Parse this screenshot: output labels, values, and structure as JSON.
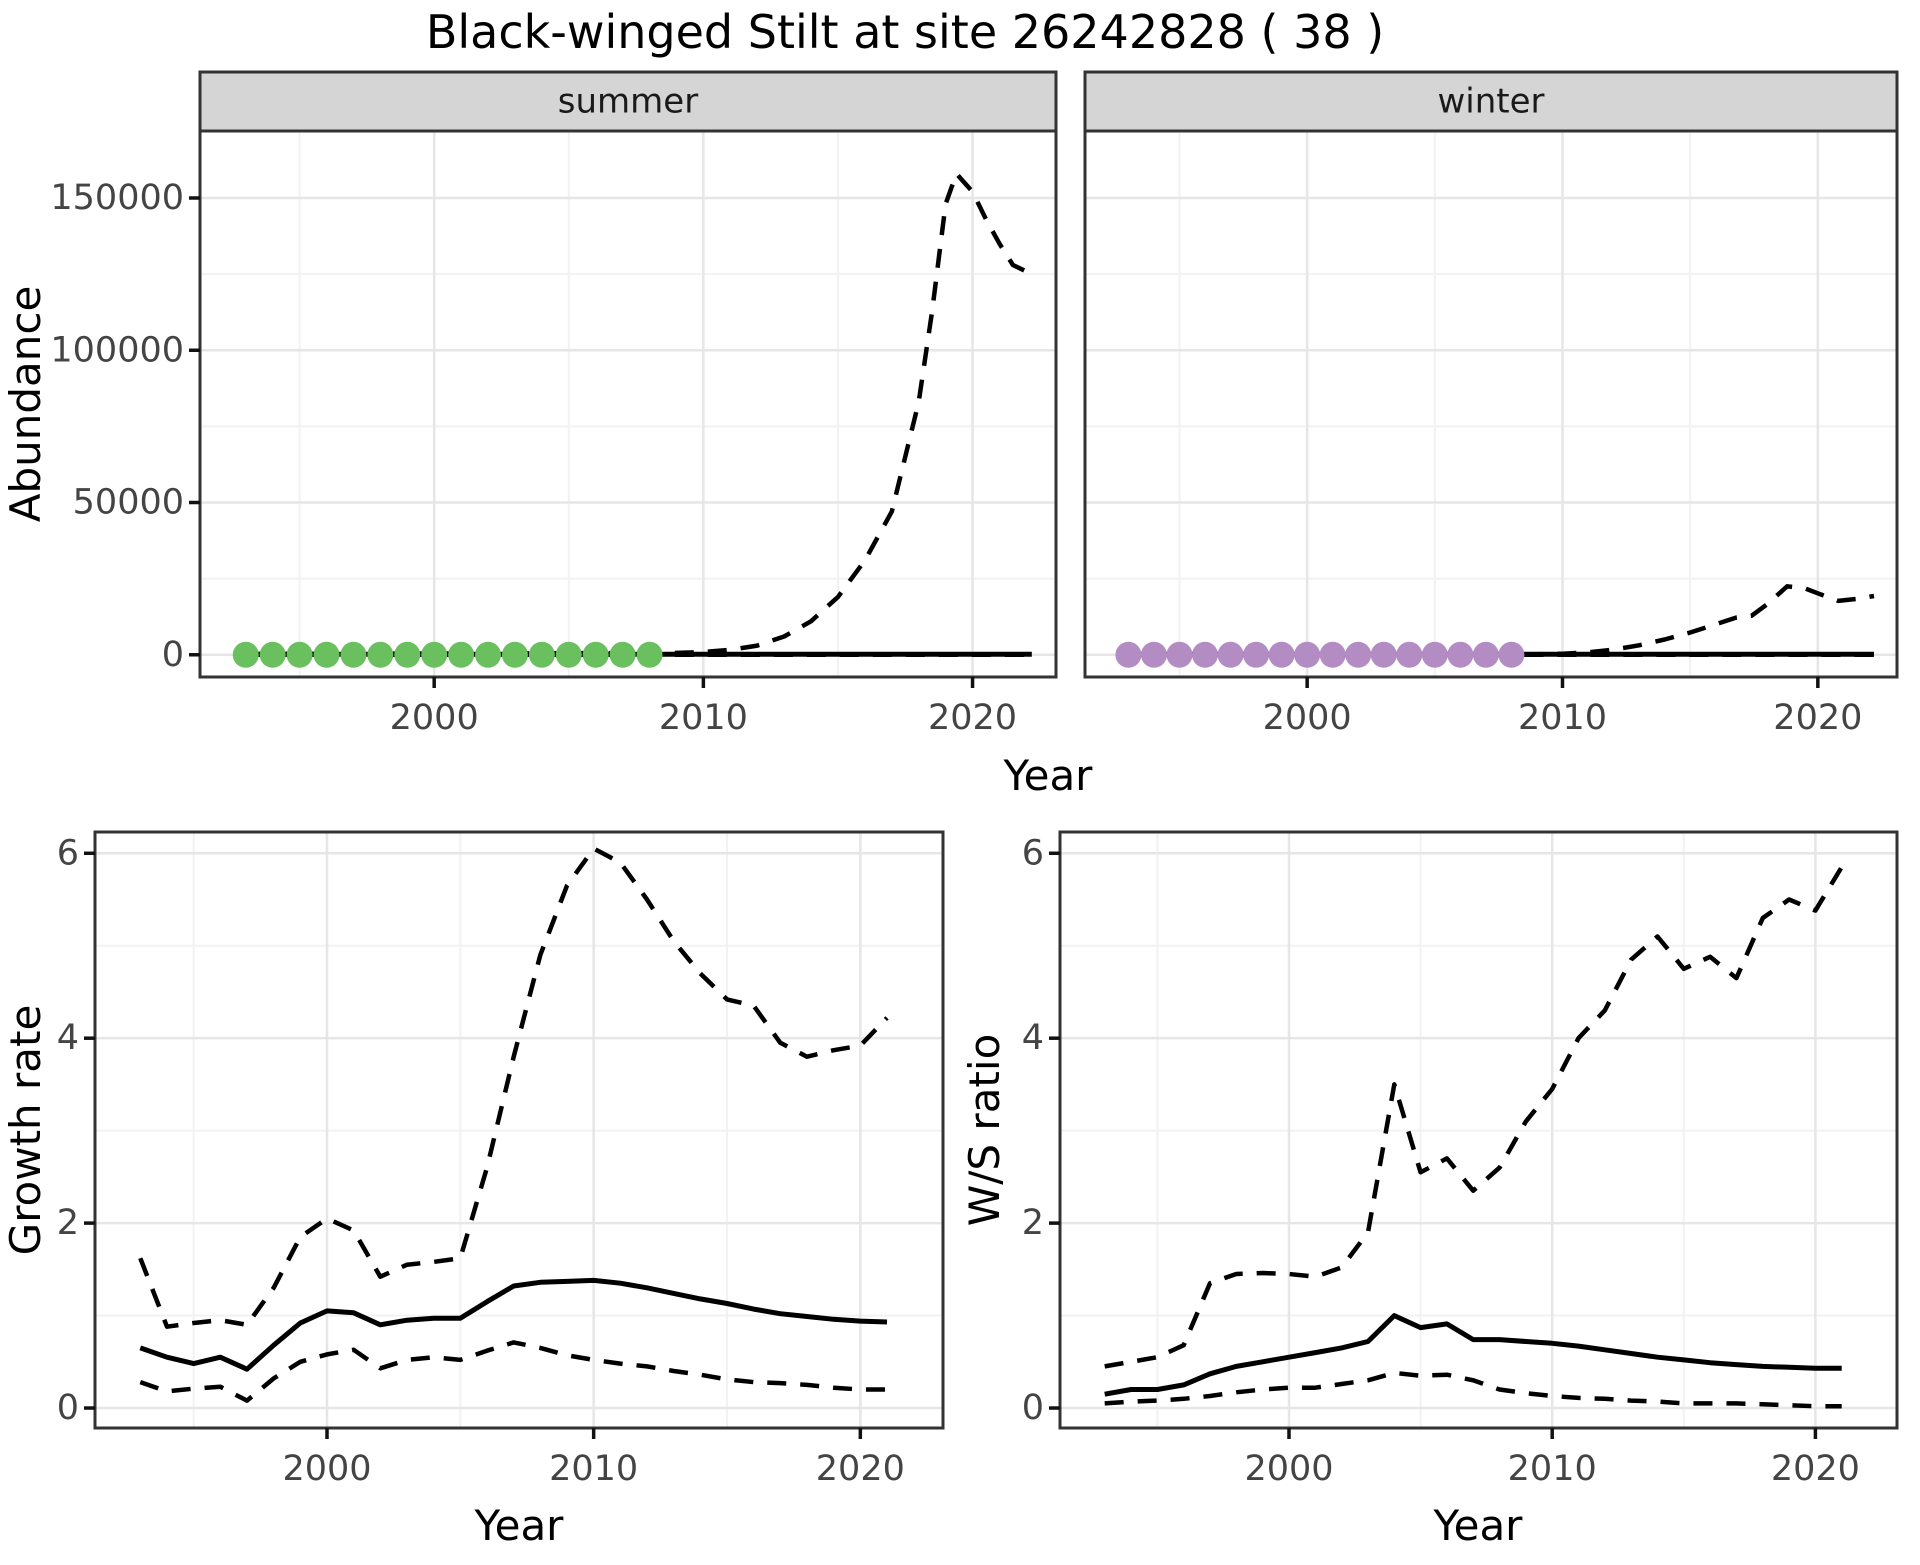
{
  "title": "Black-winged Stilt at site 26242828 ( 38 )",
  "colors": {
    "summer_point": "#6abf5e",
    "winter_point": "#b48cc4",
    "line": "#000000",
    "strip_bg": "#d5d5d5",
    "panel_border": "#333333",
    "grid_major": "#e6e6e6",
    "grid_minor": "#f2f2f2",
    "tick_label": "#444444"
  },
  "chart_data": [
    {
      "id": "abundance-summer",
      "type": "line",
      "facet_label": "summer",
      "xlabel": "Year",
      "ylabel": "Abundance",
      "xlim": [
        1991.3,
        2023.1
      ],
      "ylim": [
        -7300,
        172000
      ],
      "x_ticks": [
        2000,
        2010,
        2020
      ],
      "x_tick_labels": [
        "2000",
        "2010",
        "2020"
      ],
      "x_minor": [
        1995,
        2005,
        2015
      ],
      "y_ticks": [
        0,
        50000,
        100000,
        150000
      ],
      "y_tick_labels": [
        "0",
        "50000",
        "100000",
        "150000"
      ],
      "y_minor": [
        25000,
        75000,
        125000
      ],
      "grid": true,
      "legend": "none",
      "series": [
        {
          "name": "lower-ci",
          "style": "dashed",
          "x": [
            1993,
            2022.2
          ],
          "y": [
            0,
            0
          ]
        },
        {
          "name": "mean",
          "style": "solid",
          "x": [
            1993,
            2022.2
          ],
          "y": [
            150,
            150
          ]
        },
        {
          "name": "upper-ci",
          "style": "dashed",
          "x": [
            1993,
            2009,
            2010,
            2011,
            2012,
            2013,
            2014,
            2015,
            2016,
            2017,
            2018,
            2018.5,
            2019,
            2019.4,
            2020,
            2020.5,
            2021,
            2021.5,
            2022.2
          ],
          "y": [
            250,
            600,
            900,
            1600,
            3000,
            6000,
            11000,
            19000,
            31000,
            47000,
            83000,
            113000,
            148000,
            158000,
            152000,
            143000,
            135000,
            128000,
            125000
          ]
        },
        {
          "name": "observed-points",
          "style": "points",
          "color": "#6abf5e",
          "x": [
            1993,
            1994,
            1995,
            1996,
            1997,
            1998,
            1999,
            2000,
            2001,
            2002,
            2003,
            2004,
            2005,
            2006,
            2007,
            2008
          ],
          "y": [
            0,
            0,
            0,
            0,
            0,
            0,
            0,
            0,
            0,
            0,
            0,
            0,
            0,
            0,
            0,
            0
          ]
        }
      ]
    },
    {
      "id": "abundance-winter",
      "type": "line",
      "facet_label": "winter",
      "xlabel": "Year",
      "ylabel": "Abundance",
      "xlim": [
        1991.3,
        2023.1
      ],
      "ylim": [
        -7300,
        172000
      ],
      "x_ticks": [
        2000,
        2010,
        2020
      ],
      "x_tick_labels": [
        "2000",
        "2010",
        "2020"
      ],
      "x_minor": [
        1995,
        2005,
        2015
      ],
      "y_ticks": [
        0,
        50000,
        100000,
        150000
      ],
      "y_tick_labels": [
        "0",
        "50000",
        "100000",
        "150000"
      ],
      "y_minor": [
        25000,
        75000,
        125000
      ],
      "grid": true,
      "legend": "none",
      "series": [
        {
          "name": "lower-ci",
          "style": "dashed",
          "x": [
            1993,
            2022.2
          ],
          "y": [
            0,
            0
          ]
        },
        {
          "name": "mean",
          "style": "solid",
          "x": [
            1993,
            2022.2
          ],
          "y": [
            150,
            150
          ]
        },
        {
          "name": "upper-ci",
          "style": "dashed",
          "x": [
            1993,
            2009,
            2010,
            2011,
            2012,
            2013,
            2014,
            2015,
            2016,
            2016.8,
            2017.4,
            2018,
            2018.8,
            2019.5,
            2020,
            2020.8,
            2021.5,
            2022.2
          ],
          "y": [
            100,
            200,
            350,
            800,
            1700,
            3100,
            5000,
            7300,
            10000,
            12200,
            12800,
            16500,
            22500,
            21800,
            20200,
            17700,
            18300,
            19300
          ]
        },
        {
          "name": "observed-points",
          "style": "points",
          "color": "#b48cc4",
          "x": [
            1993,
            1994,
            1995,
            1996,
            1997,
            1998,
            1999,
            2000,
            2001,
            2002,
            2003,
            2004,
            2005,
            2006,
            2007,
            2008
          ],
          "y": [
            0,
            0,
            0,
            0,
            0,
            0,
            0,
            0,
            0,
            0,
            0,
            0,
            0,
            0,
            0,
            0
          ]
        }
      ]
    },
    {
      "id": "growth-rate",
      "type": "line",
      "facet_label": "",
      "xlabel": "Year",
      "ylabel": "Growth rate",
      "xlim": [
        1991.3,
        2023.1
      ],
      "ylim": [
        -0.216,
        6.23
      ],
      "x_ticks": [
        2000,
        2010,
        2020
      ],
      "x_tick_labels": [
        "2000",
        "2010",
        "2020"
      ],
      "x_minor": [
        1995,
        2005,
        2015
      ],
      "y_ticks": [
        0,
        2,
        4,
        6
      ],
      "y_tick_labels": [
        "0",
        "2",
        "4",
        "6"
      ],
      "y_minor": [
        1,
        3,
        5
      ],
      "grid": true,
      "legend": "none",
      "series": [
        {
          "name": "upper-ci",
          "style": "dashed",
          "x": [
            1993,
            1994,
            1995,
            1996,
            1997,
            1998,
            1999,
            2000,
            2001,
            2002,
            2003,
            2004,
            2005,
            2006,
            2007,
            2008,
            2009,
            2010,
            2011,
            2012,
            2013,
            2014,
            2015,
            2016,
            2017,
            2018,
            2019,
            2020,
            2021
          ],
          "y": [
            1.62,
            0.88,
            0.92,
            0.95,
            0.9,
            1.3,
            1.85,
            2.05,
            1.92,
            1.42,
            1.55,
            1.58,
            1.62,
            2.6,
            3.8,
            4.9,
            5.65,
            6.05,
            5.9,
            5.5,
            5.05,
            4.7,
            4.42,
            4.35,
            3.95,
            3.8,
            3.87,
            3.92,
            4.22
          ]
        },
        {
          "name": "mean",
          "style": "solid",
          "x": [
            1993,
            1994,
            1995,
            1996,
            1997,
            1998,
            1999,
            2000,
            2001,
            2002,
            2003,
            2004,
            2005,
            2006,
            2007,
            2008,
            2009,
            2010,
            2011,
            2012,
            2013,
            2014,
            2015,
            2016,
            2017,
            2018,
            2019,
            2020,
            2021
          ],
          "y": [
            0.65,
            0.55,
            0.48,
            0.55,
            0.42,
            0.68,
            0.92,
            1.05,
            1.03,
            0.9,
            0.95,
            0.97,
            0.97,
            1.15,
            1.32,
            1.36,
            1.37,
            1.38,
            1.35,
            1.3,
            1.24,
            1.18,
            1.13,
            1.07,
            1.02,
            0.99,
            0.96,
            0.94,
            0.93
          ]
        },
        {
          "name": "lower-ci",
          "style": "dashed",
          "x": [
            1993,
            1994,
            1995,
            1996,
            1997,
            1998,
            1999,
            2000,
            2001,
            2002,
            2003,
            2004,
            2005,
            2006,
            2007,
            2008,
            2009,
            2010,
            2011,
            2012,
            2013,
            2014,
            2015,
            2016,
            2017,
            2018,
            2019,
            2020,
            2021
          ],
          "y": [
            0.28,
            0.18,
            0.21,
            0.23,
            0.08,
            0.32,
            0.5,
            0.58,
            0.63,
            0.43,
            0.52,
            0.55,
            0.52,
            0.62,
            0.71,
            0.65,
            0.57,
            0.52,
            0.48,
            0.45,
            0.4,
            0.36,
            0.31,
            0.28,
            0.27,
            0.25,
            0.22,
            0.2,
            0.2
          ]
        }
      ]
    },
    {
      "id": "ws-ratio",
      "type": "line",
      "facet_label": "",
      "xlabel": "Year",
      "ylabel": "W/S ratio",
      "xlim": [
        1991.3,
        2023.1
      ],
      "ylim": [
        -0.216,
        6.23
      ],
      "x_ticks": [
        2000,
        2010,
        2020
      ],
      "x_tick_labels": [
        "2000",
        "2010",
        "2020"
      ],
      "x_minor": [
        1995,
        2005,
        2015
      ],
      "y_ticks": [
        0,
        2,
        4,
        6
      ],
      "y_tick_labels": [
        "0",
        "2",
        "4",
        "6"
      ],
      "y_minor": [
        1,
        3,
        5
      ],
      "grid": true,
      "legend": "none",
      "series": [
        {
          "name": "upper-ci",
          "style": "dashed",
          "x": [
            1993,
            1994,
            1995,
            1996,
            1997,
            1998,
            1999,
            2000,
            2001,
            2002,
            2003,
            2004,
            2005,
            2006,
            2007,
            2008,
            2009,
            2010,
            2011,
            2012,
            2013,
            2014,
            2015,
            2016,
            2017,
            2018,
            2019,
            2020,
            2021
          ],
          "y": [
            0.45,
            0.5,
            0.55,
            0.68,
            1.35,
            1.45,
            1.46,
            1.45,
            1.42,
            1.52,
            1.9,
            3.5,
            2.55,
            2.7,
            2.35,
            2.6,
            3.1,
            3.45,
            4.0,
            4.3,
            4.85,
            5.1,
            4.75,
            4.88,
            4.65,
            5.3,
            5.5,
            5.38,
            5.85
          ]
        },
        {
          "name": "mean",
          "style": "solid",
          "x": [
            1993,
            1994,
            1995,
            1996,
            1997,
            1998,
            1999,
            2000,
            2001,
            2002,
            2003,
            2004,
            2005,
            2006,
            2007,
            2008,
            2009,
            2010,
            2011,
            2012,
            2013,
            2014,
            2015,
            2016,
            2017,
            2018,
            2019,
            2020,
            2021
          ],
          "y": [
            0.15,
            0.2,
            0.2,
            0.25,
            0.37,
            0.45,
            0.5,
            0.55,
            0.6,
            0.65,
            0.72,
            1.0,
            0.87,
            0.91,
            0.74,
            0.74,
            0.72,
            0.7,
            0.67,
            0.63,
            0.59,
            0.55,
            0.52,
            0.49,
            0.47,
            0.45,
            0.44,
            0.43,
            0.43
          ]
        },
        {
          "name": "lower-ci",
          "style": "dashed",
          "x": [
            1993,
            1994,
            1995,
            1996,
            1997,
            1998,
            1999,
            2000,
            2001,
            2002,
            2003,
            2004,
            2005,
            2006,
            2007,
            2008,
            2009,
            2010,
            2011,
            2012,
            2013,
            2014,
            2015,
            2016,
            2017,
            2018,
            2019,
            2020,
            2021
          ],
          "y": [
            0.05,
            0.07,
            0.08,
            0.1,
            0.13,
            0.17,
            0.2,
            0.22,
            0.22,
            0.26,
            0.3,
            0.38,
            0.35,
            0.36,
            0.3,
            0.2,
            0.16,
            0.13,
            0.11,
            0.1,
            0.08,
            0.07,
            0.05,
            0.05,
            0.05,
            0.04,
            0.03,
            0.02,
            0.02
          ]
        }
      ]
    }
  ]
}
